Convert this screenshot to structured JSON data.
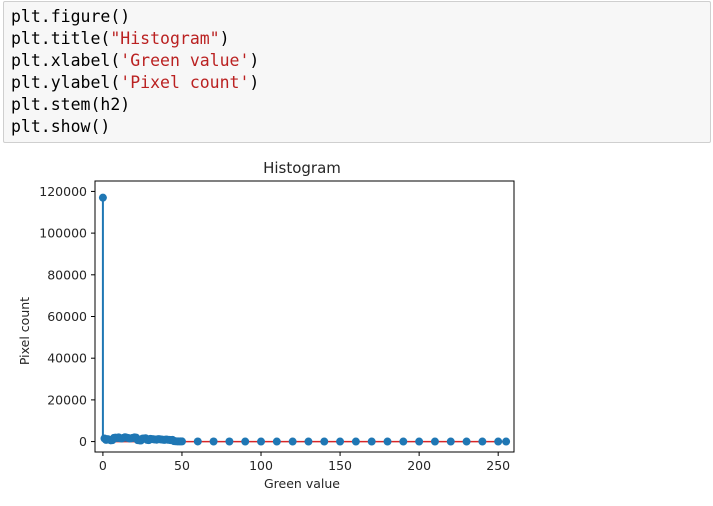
{
  "code_cell": {
    "lines": [
      {
        "pre": "plt.figure()",
        "str": "",
        "post": ""
      },
      {
        "pre": "plt.title(",
        "str": "\"Histogram\"",
        "post": ")"
      },
      {
        "pre": "plt.xlabel(",
        "str": "'Green value'",
        "post": ")"
      },
      {
        "pre": "plt.ylabel(",
        "str": "'Pixel count'",
        "post": ")"
      },
      {
        "pre": "plt.stem(h2)",
        "str": "",
        "post": ""
      },
      {
        "pre": "plt.show()",
        "str": "",
        "post": ""
      }
    ]
  },
  "colors": {
    "stem": "#1f77b4",
    "baseline": "#d62728",
    "code_string": "#ba2121"
  },
  "chart_data": {
    "type": "stem",
    "title": "Histogram",
    "xlabel": "Green value",
    "ylabel": "Pixel count",
    "xlim": [
      -5,
      260
    ],
    "ylim": [
      -5000,
      125000
    ],
    "xticks": [
      0,
      50,
      100,
      150,
      200,
      250
    ],
    "yticks": [
      0,
      20000,
      40000,
      60000,
      80000,
      100000,
      120000
    ],
    "xtick_labels": [
      "0",
      "50",
      "100",
      "150",
      "200",
      "250"
    ],
    "ytick_labels": [
      "0",
      "20000",
      "40000",
      "60000",
      "80000",
      "100000",
      "120000"
    ],
    "x": [
      0,
      1,
      2,
      3,
      4,
      5,
      6,
      7,
      8,
      9,
      10,
      11,
      12,
      13,
      14,
      15,
      16,
      17,
      18,
      19,
      20,
      21,
      22,
      23,
      24,
      25,
      26,
      27,
      28,
      29,
      30,
      31,
      32,
      33,
      34,
      35,
      36,
      37,
      38,
      39,
      40,
      41,
      42,
      43,
      44,
      45,
      46,
      47,
      48,
      49,
      50,
      60,
      70,
      80,
      90,
      100,
      110,
      120,
      130,
      140,
      150,
      160,
      170,
      180,
      190,
      200,
      210,
      220,
      230,
      240,
      250,
      255
    ],
    "values": [
      117000,
      1500,
      800,
      1200,
      900,
      600,
      700,
      1800,
      1900,
      1700,
      2000,
      1600,
      1500,
      1800,
      2100,
      1900,
      1700,
      1500,
      1600,
      1800,
      2000,
      1900,
      700,
      600,
      500,
      1400,
      1500,
      1600,
      800,
      700,
      1300,
      1200,
      1100,
      1000,
      900,
      1200,
      1100,
      1000,
      900,
      800,
      1000,
      900,
      800,
      700,
      800,
      200,
      150,
      120,
      100,
      90,
      80,
      50,
      40,
      30,
      25,
      20,
      20,
      15,
      15,
      10,
      10,
      10,
      10,
      10,
      10,
      10,
      10,
      10,
      10,
      10,
      10,
      10
    ],
    "grid": false,
    "legend": "none"
  }
}
